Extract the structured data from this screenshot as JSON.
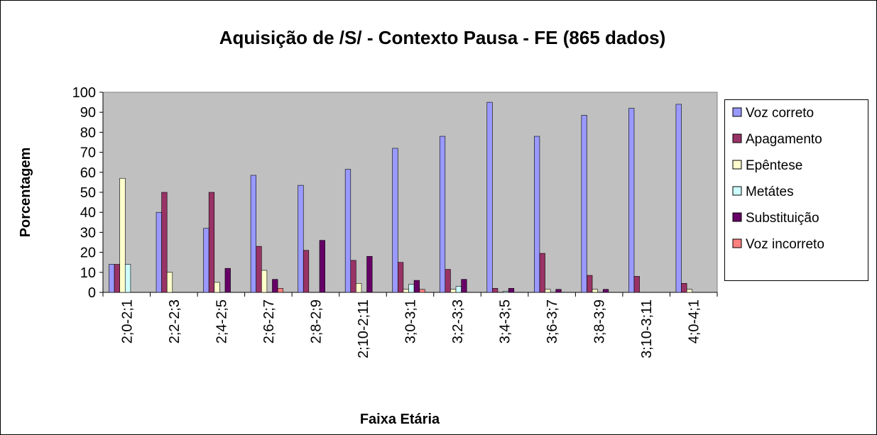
{
  "chart_data": {
    "type": "bar",
    "title": "Aquisição de /S/ - Contexto Pausa - FE (865 dados)",
    "x_label": "Faixa Etária",
    "y_label": "Porcentagem",
    "categories": [
      "2;0-2;1",
      "2;2-2;3",
      "2;4-2;5",
      "2;6-2;7",
      "2;8-2;9",
      "2;10-2;11",
      "3;0-3;1",
      "3;2-3;3",
      "3;4-3;5",
      "3;6-3;7",
      "3;8-3;9",
      "3;10-3;11",
      "4;0-4;1"
    ],
    "series": [
      {
        "name": "Voz correto",
        "color": "#9999ff",
        "values": [
          14,
          40,
          32,
          58.5,
          53.5,
          61.5,
          72,
          78,
          95,
          78,
          88.5,
          92,
          94
        ]
      },
      {
        "name": "Apagamento",
        "color": "#993366",
        "values": [
          14,
          50,
          50,
          23,
          21,
          16,
          15,
          11.5,
          2,
          19.5,
          8.5,
          8,
          4.5
        ]
      },
      {
        "name": "Epêntese",
        "color": "#ffffcc",
        "values": [
          57,
          10,
          5,
          11,
          0,
          4.5,
          1.5,
          1.5,
          0,
          1.5,
          1.5,
          0,
          1.5
        ]
      },
      {
        "name": "Metátes",
        "color": "#ccffff",
        "values": [
          14,
          0,
          0,
          0,
          0,
          0,
          4,
          3,
          0.5,
          0,
          0,
          0,
          0
        ]
      },
      {
        "name": "Substituição",
        "color": "#660066",
        "values": [
          0,
          0,
          12,
          6.5,
          26,
          18,
          6,
          6.5,
          2,
          1.5,
          1.5,
          0,
          0
        ]
      },
      {
        "name": "Voz incorreto",
        "color": "#ff8080",
        "values": [
          0,
          0,
          0,
          2,
          0,
          0,
          1.5,
          0,
          0,
          0,
          0,
          0,
          0
        ]
      }
    ],
    "ylim": [
      0,
      100
    ],
    "yticks": [
      0,
      10,
      20,
      30,
      40,
      50,
      60,
      70,
      80,
      90,
      100
    ],
    "grid": false,
    "legend": "right"
  }
}
